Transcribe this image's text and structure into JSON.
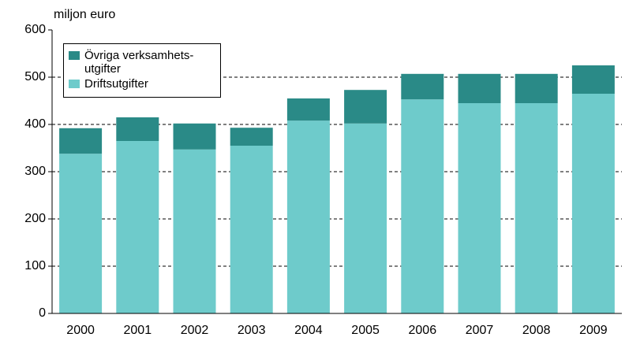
{
  "chart_data": {
    "type": "stacked_bar",
    "ylabel": "miljon euro",
    "categories": [
      "2000",
      "2001",
      "2002",
      "2003",
      "2004",
      "2005",
      "2006",
      "2007",
      "2008",
      "2009"
    ],
    "series": [
      {
        "name": "Driftsutgifter",
        "color": "#6ecbcb",
        "values": [
          338,
          365,
          347,
          355,
          408,
          402,
          453,
          445,
          445,
          465
        ]
      },
      {
        "name": "Övriga verksamhets-\nutgifter",
        "color": "#2a8a87",
        "values": [
          54,
          50,
          55,
          38,
          47,
          71,
          54,
          62,
          62,
          60
        ]
      }
    ],
    "ylim": [
      0,
      600
    ],
    "yticks": [
      0,
      100,
      200,
      300,
      400,
      500,
      600
    ],
    "grid": true
  }
}
